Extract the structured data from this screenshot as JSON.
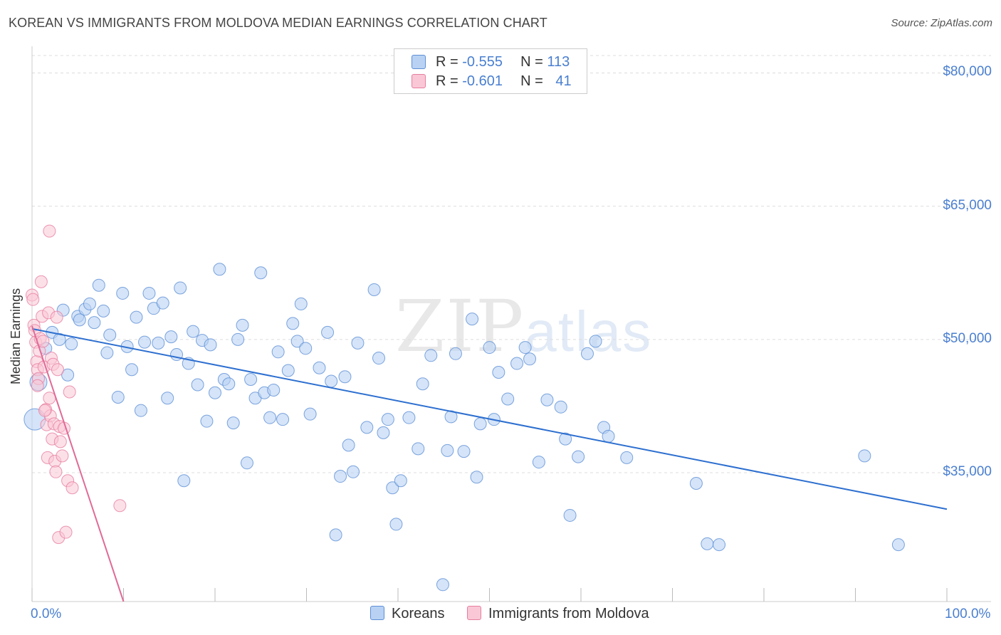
{
  "title": "KOREAN VS IMMIGRANTS FROM MOLDOVA MEDIAN EARNINGS CORRELATION CHART",
  "source": "Source: ZipAtlas.com",
  "watermark": {
    "a": "ZIP",
    "b": "atlas"
  },
  "legend": {
    "rows": [
      {
        "r_label": "R = ",
        "r_value": "-0.555",
        "n_label": "N = ",
        "n_value": "113"
      },
      {
        "r_label": "R = ",
        "r_value": "-0.601",
        "n_label": "N = ",
        "n_value": "41"
      }
    ]
  },
  "bottom_legend": {
    "series1": "Koreans",
    "series2": "Immigrants from Moldova"
  },
  "axis": {
    "x_min_label": "0.0%",
    "x_max_label": "100.0%",
    "y_title": "Median Earnings",
    "y_ticks": [
      "$80,000",
      "$65,000",
      "$50,000",
      "$35,000"
    ]
  },
  "colors": {
    "blue_fill": "#b9d2f3",
    "blue_stroke": "#5d8fd6",
    "blue_line": "#2d6fd0",
    "pink_fill": "#f9c7d6",
    "pink_stroke": "#e77ea0",
    "pink_line": "#e06a96"
  },
  "chart_data": {
    "type": "scatter",
    "title": "KOREAN VS IMMIGRANTS FROM MOLDOVA MEDIAN EARNINGS CORRELATION CHART",
    "xlabel": "",
    "ylabel": "Median Earnings",
    "xlim": [
      0,
      100
    ],
    "ylim": [
      20500,
      83000
    ],
    "y_ticks": [
      35000,
      50000,
      65000,
      80000
    ],
    "series": [
      {
        "name": "Koreans",
        "R": -0.555,
        "N": 113,
        "trend": {
          "x": [
            0,
            100
          ],
          "y": [
            51200,
            30900
          ]
        },
        "points": [
          [
            0.3,
            41000,
            "L"
          ],
          [
            0.7,
            45200,
            "M"
          ],
          [
            1.5,
            49000
          ],
          [
            2.2,
            50800
          ],
          [
            3.0,
            50000
          ],
          [
            3.4,
            53300
          ],
          [
            3.9,
            46000
          ],
          [
            4.3,
            49500
          ],
          [
            5.0,
            52600
          ],
          [
            5.2,
            52200
          ],
          [
            5.8,
            53400
          ],
          [
            6.3,
            54000
          ],
          [
            6.8,
            51900
          ],
          [
            7.3,
            56100
          ],
          [
            7.8,
            53200
          ],
          [
            8.2,
            48500
          ],
          [
            8.5,
            50500
          ],
          [
            9.4,
            43500
          ],
          [
            9.9,
            55200
          ],
          [
            10.4,
            49200
          ],
          [
            10.9,
            46600
          ],
          [
            11.4,
            52500
          ],
          [
            11.9,
            42000
          ],
          [
            12.3,
            49700
          ],
          [
            12.8,
            55200
          ],
          [
            13.3,
            53500
          ],
          [
            13.8,
            49600
          ],
          [
            14.3,
            54100
          ],
          [
            14.8,
            43400
          ],
          [
            15.2,
            50300
          ],
          [
            15.8,
            48300
          ],
          [
            16.2,
            55800
          ],
          [
            16.6,
            34100
          ],
          [
            17.1,
            47300
          ],
          [
            17.6,
            50900
          ],
          [
            18.1,
            44900
          ],
          [
            18.6,
            49900
          ],
          [
            19.1,
            40800
          ],
          [
            19.5,
            49400
          ],
          [
            20.0,
            44000
          ],
          [
            20.5,
            57900
          ],
          [
            21.0,
            45500
          ],
          [
            21.5,
            45000
          ],
          [
            22.0,
            40600
          ],
          [
            22.5,
            50000
          ],
          [
            23.0,
            51600
          ],
          [
            23.5,
            36100
          ],
          [
            23.9,
            45500
          ],
          [
            24.4,
            43400
          ],
          [
            25.0,
            57500
          ],
          [
            25.4,
            44000
          ],
          [
            26.0,
            41200
          ],
          [
            26.4,
            44300
          ],
          [
            26.9,
            48600
          ],
          [
            27.4,
            41000
          ],
          [
            28.0,
            46500
          ],
          [
            28.5,
            51800
          ],
          [
            29.0,
            49800
          ],
          [
            29.4,
            54000
          ],
          [
            29.9,
            49000
          ],
          [
            30.4,
            41600
          ],
          [
            31.4,
            46800
          ],
          [
            32.3,
            50800
          ],
          [
            32.7,
            45300
          ],
          [
            33.2,
            28000
          ],
          [
            33.7,
            34600
          ],
          [
            34.2,
            45800
          ],
          [
            34.6,
            38100
          ],
          [
            35.1,
            35100
          ],
          [
            35.6,
            49600
          ],
          [
            36.6,
            40100
          ],
          [
            37.4,
            55600
          ],
          [
            37.9,
            47900
          ],
          [
            38.4,
            39500
          ],
          [
            38.9,
            41000
          ],
          [
            39.4,
            33300
          ],
          [
            39.8,
            29200
          ],
          [
            40.3,
            34100
          ],
          [
            41.2,
            41200
          ],
          [
            42.2,
            37700
          ],
          [
            42.7,
            45000
          ],
          [
            43.6,
            48200
          ],
          [
            44.9,
            22400
          ],
          [
            45.4,
            37500
          ],
          [
            45.8,
            41300
          ],
          [
            46.3,
            48400
          ],
          [
            47.2,
            37400
          ],
          [
            48.1,
            52300
          ],
          [
            48.6,
            34500
          ],
          [
            49.0,
            40500
          ],
          [
            50.0,
            49100
          ],
          [
            50.5,
            41000
          ],
          [
            51.0,
            46300
          ],
          [
            52.0,
            43300
          ],
          [
            53.0,
            47300
          ],
          [
            53.9,
            49100
          ],
          [
            54.4,
            47800
          ],
          [
            55.4,
            36200
          ],
          [
            56.3,
            43200
          ],
          [
            57.8,
            42400
          ],
          [
            58.3,
            38800
          ],
          [
            58.8,
            30200
          ],
          [
            59.7,
            36800
          ],
          [
            60.7,
            48400
          ],
          [
            61.6,
            49800
          ],
          [
            62.5,
            40100
          ],
          [
            63.0,
            39100
          ],
          [
            65.0,
            36700
          ],
          [
            72.6,
            33800
          ],
          [
            73.8,
            27000
          ],
          [
            75.1,
            26900
          ],
          [
            91.0,
            36900
          ],
          [
            94.7,
            26900
          ]
        ]
      },
      {
        "name": "Immigrants from Moldova",
        "R": -0.601,
        "N": 41,
        "trend": {
          "x": [
            0,
            10
          ],
          "y": [
            51500,
            20500
          ]
        },
        "points": [
          [
            0.0,
            55000
          ],
          [
            0.1,
            54500
          ],
          [
            0.2,
            51600
          ],
          [
            0.3,
            51000
          ],
          [
            0.4,
            49700
          ],
          [
            0.5,
            47500
          ],
          [
            0.6,
            46600
          ],
          [
            0.7,
            45600
          ],
          [
            0.8,
            48700
          ],
          [
            0.9,
            50100
          ],
          [
            1.0,
            56500
          ],
          [
            1.1,
            52600
          ],
          [
            1.2,
            49800
          ],
          [
            1.3,
            46900
          ],
          [
            1.5,
            42100
          ],
          [
            1.6,
            40400
          ],
          [
            1.7,
            36700
          ],
          [
            1.8,
            53000
          ],
          [
            1.9,
            43400
          ],
          [
            2.0,
            41400
          ],
          [
            2.1,
            47900
          ],
          [
            2.2,
            38800
          ],
          [
            2.3,
            47200
          ],
          [
            2.4,
            40500
          ],
          [
            2.5,
            36300
          ],
          [
            2.6,
            35100
          ],
          [
            2.7,
            52500
          ],
          [
            2.8,
            46600
          ],
          [
            2.9,
            27700
          ],
          [
            3.0,
            40200
          ],
          [
            3.1,
            38500
          ],
          [
            3.3,
            36900
          ],
          [
            3.5,
            40000
          ],
          [
            3.7,
            28300
          ],
          [
            3.9,
            34100
          ],
          [
            4.1,
            44100
          ],
          [
            4.4,
            33300
          ],
          [
            0.6,
            44800
          ],
          [
            1.4,
            42000
          ],
          [
            9.6,
            31300
          ],
          [
            1.9,
            62200
          ]
        ]
      }
    ]
  }
}
